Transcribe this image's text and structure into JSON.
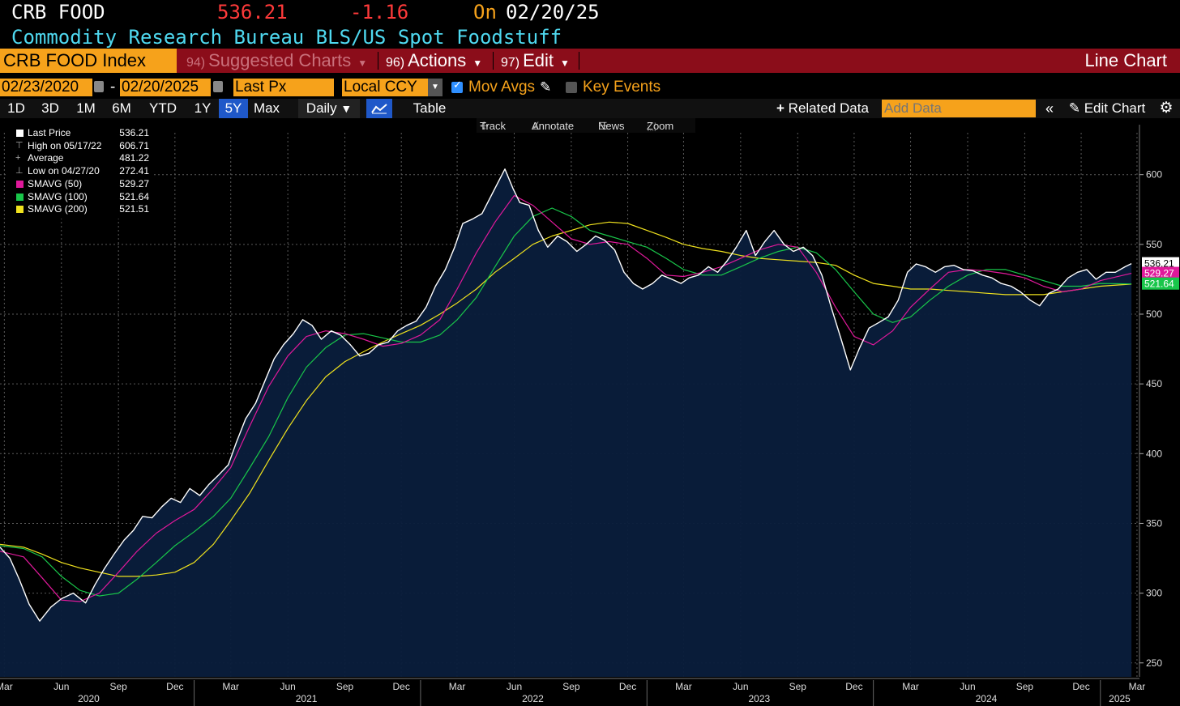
{
  "header": {
    "ticker": "CRB FOOD",
    "last": "536.21",
    "change": "-1.16",
    "on_label": "On",
    "date": "02/20/25",
    "description": "Commodity Research Bureau BLS/US Spot Foodstuff"
  },
  "menubar": {
    "title": "CRB FOOD Index",
    "suggested_num": "94)",
    "suggested": "Suggested Charts",
    "actions_num": "96)",
    "actions": "Actions",
    "edit_num": "97)",
    "edit": "Edit",
    "chart_type": "Line Chart"
  },
  "params": {
    "start_date": "02/23/2020",
    "dash": "-",
    "end_date": "02/20/2025",
    "field": "Last Px",
    "currency": "Local CCY",
    "mov_avgs": "Mov Avgs",
    "key_events": "Key Events"
  },
  "toolbar": {
    "ranges": [
      "1D",
      "3D",
      "1M",
      "6M",
      "YTD",
      "1Y",
      "5Y",
      "Max"
    ],
    "active_range": "5Y",
    "period": "Daily",
    "table": "Table",
    "related": "Related Data",
    "add_data_placeholder": "Add Data",
    "edit_chart": "Edit Chart"
  },
  "chart_tools": {
    "track": "Track",
    "annotate": "Annotate",
    "news": "News",
    "zoom": "Zoom"
  },
  "legend": [
    {
      "label": "Last Price",
      "value": "536.21",
      "color": "#ffffff",
      "marker": "square"
    },
    {
      "label": "High on 05/17/22",
      "value": "606.71",
      "color": "#aaaaaa",
      "marker": "high"
    },
    {
      "label": "Average",
      "value": "481.22",
      "color": "#aaaaaa",
      "marker": "avg"
    },
    {
      "label": "Low on 04/27/20",
      "value": "272.41",
      "color": "#aaaaaa",
      "marker": "low"
    },
    {
      "label": "SMAVG (50)",
      "value": "529.27",
      "color": "#e0199b",
      "marker": "square"
    },
    {
      "label": "SMAVG (100)",
      "value": "521.64",
      "color": "#19c64a",
      "marker": "square"
    },
    {
      "label": "SMAVG (200)",
      "value": "521.51",
      "color": "#f0e21e",
      "marker": "square"
    }
  ],
  "chart_data": {
    "type": "line",
    "title": "CRB FOOD Index",
    "ylim": [
      240,
      630
    ],
    "yticks": [
      250,
      300,
      350,
      400,
      450,
      500,
      550,
      600
    ],
    "xlim": [
      "2020-02-23",
      "2025-03-05"
    ],
    "x_month_ticks": [
      {
        "label": "Mar",
        "date": "2020-03-01"
      },
      {
        "label": "Jun",
        "date": "2020-06-01"
      },
      {
        "label": "Sep",
        "date": "2020-09-01"
      },
      {
        "label": "Dec",
        "date": "2020-12-01"
      },
      {
        "label": "Mar",
        "date": "2021-03-01"
      },
      {
        "label": "Jun",
        "date": "2021-06-01"
      },
      {
        "label": "Sep",
        "date": "2021-09-01"
      },
      {
        "label": "Dec",
        "date": "2021-12-01"
      },
      {
        "label": "Mar",
        "date": "2022-03-01"
      },
      {
        "label": "Jun",
        "date": "2022-06-01"
      },
      {
        "label": "Sep",
        "date": "2022-09-01"
      },
      {
        "label": "Dec",
        "date": "2022-12-01"
      },
      {
        "label": "Mar",
        "date": "2023-03-01"
      },
      {
        "label": "Jun",
        "date": "2023-06-01"
      },
      {
        "label": "Sep",
        "date": "2023-09-01"
      },
      {
        "label": "Dec",
        "date": "2023-12-01"
      },
      {
        "label": "Mar",
        "date": "2024-03-01"
      },
      {
        "label": "Jun",
        "date": "2024-06-01"
      },
      {
        "label": "Sep",
        "date": "2024-09-01"
      },
      {
        "label": "Dec",
        "date": "2024-12-01"
      },
      {
        "label": "Mar",
        "date": "2025-03-01"
      }
    ],
    "x_year_labels": [
      {
        "label": "2020",
        "date": "2020-07-15"
      },
      {
        "label": "2021",
        "date": "2021-07-01"
      },
      {
        "label": "2022",
        "date": "2022-07-01"
      },
      {
        "label": "2023",
        "date": "2023-07-01"
      },
      {
        "label": "2024",
        "date": "2024-07-01"
      },
      {
        "label": "2025",
        "date": "2025-02-01"
      }
    ],
    "year_dividers": [
      "2021-01-01",
      "2022-01-01",
      "2023-01-01",
      "2024-01-01",
      "2025-01-01"
    ],
    "series": [
      {
        "name": "Last Price",
        "color": "#ffffff",
        "fill": "#0a1e3c",
        "x": [
          "2020-02-23",
          "2020-03-10",
          "2020-03-25",
          "2020-04-10",
          "2020-04-27",
          "2020-05-15",
          "2020-06-01",
          "2020-06-20",
          "2020-07-10",
          "2020-07-25",
          "2020-08-10",
          "2020-08-25",
          "2020-09-10",
          "2020-09-25",
          "2020-10-10",
          "2020-10-25",
          "2020-11-10",
          "2020-11-25",
          "2020-12-10",
          "2020-12-25",
          "2021-01-10",
          "2021-01-25",
          "2021-02-10",
          "2021-02-25",
          "2021-03-10",
          "2021-03-25",
          "2021-04-10",
          "2021-04-25",
          "2021-05-10",
          "2021-05-25",
          "2021-06-10",
          "2021-06-25",
          "2021-07-10",
          "2021-07-25",
          "2021-08-10",
          "2021-08-25",
          "2021-09-10",
          "2021-09-25",
          "2021-10-10",
          "2021-10-25",
          "2021-11-10",
          "2021-11-25",
          "2021-12-10",
          "2021-12-25",
          "2022-01-10",
          "2022-01-25",
          "2022-02-10",
          "2022-02-25",
          "2022-03-10",
          "2022-03-25",
          "2022-04-10",
          "2022-04-25",
          "2022-05-17",
          "2022-05-30",
          "2022-06-10",
          "2022-06-25",
          "2022-07-10",
          "2022-07-25",
          "2022-08-10",
          "2022-08-25",
          "2022-09-10",
          "2022-09-25",
          "2022-10-10",
          "2022-10-25",
          "2022-11-10",
          "2022-11-25",
          "2022-12-10",
          "2022-12-25",
          "2023-01-10",
          "2023-01-25",
          "2023-02-10",
          "2023-02-25",
          "2023-03-10",
          "2023-03-25",
          "2023-04-10",
          "2023-04-25",
          "2023-05-10",
          "2023-05-25",
          "2023-06-10",
          "2023-06-25",
          "2023-07-10",
          "2023-07-25",
          "2023-08-10",
          "2023-08-25",
          "2023-09-10",
          "2023-09-25",
          "2023-10-10",
          "2023-10-25",
          "2023-11-10",
          "2023-11-25",
          "2023-12-10",
          "2023-12-25",
          "2024-01-10",
          "2024-01-25",
          "2024-02-10",
          "2024-02-25",
          "2024-03-10",
          "2024-03-25",
          "2024-04-10",
          "2024-04-25",
          "2024-05-10",
          "2024-05-25",
          "2024-06-10",
          "2024-06-25",
          "2024-07-10",
          "2024-07-25",
          "2024-08-10",
          "2024-08-25",
          "2024-09-10",
          "2024-09-25",
          "2024-10-10",
          "2024-10-25",
          "2024-11-10",
          "2024-11-25",
          "2024-12-10",
          "2024-12-25",
          "2025-01-10",
          "2025-01-25",
          "2025-02-10",
          "2025-02-20"
        ],
        "values": [
          333,
          325,
          310,
          292,
          280,
          290,
          296,
          300,
          293,
          306,
          318,
          328,
          338,
          345,
          355,
          354,
          362,
          368,
          365,
          375,
          370,
          378,
          385,
          392,
          408,
          425,
          436,
          452,
          468,
          478,
          486,
          496,
          492,
          482,
          488,
          485,
          478,
          470,
          472,
          478,
          480,
          488,
          492,
          495,
          505,
          520,
          532,
          548,
          565,
          568,
          572,
          585,
          604,
          590,
          580,
          578,
          560,
          548,
          556,
          552,
          545,
          550,
          556,
          553,
          546,
          530,
          522,
          518,
          522,
          528,
          525,
          522,
          526,
          528,
          534,
          530,
          538,
          548,
          560,
          542,
          552,
          560,
          550,
          545,
          548,
          542,
          528,
          505,
          482,
          460,
          476,
          490,
          494,
          498,
          510,
          530,
          536,
          534,
          530,
          534,
          535,
          532,
          531,
          528,
          526,
          522,
          520,
          516,
          510,
          506,
          515,
          518,
          526,
          530,
          532,
          525,
          530,
          530,
          534,
          536.21
        ]
      },
      {
        "name": "SMAVG (50)",
        "color": "#e0199b",
        "x": [
          "2020-02-23",
          "2020-04-01",
          "2020-05-01",
          "2020-06-01",
          "2020-07-01",
          "2020-08-01",
          "2020-09-01",
          "2020-10-01",
          "2020-11-01",
          "2020-12-01",
          "2021-01-01",
          "2021-02-01",
          "2021-03-01",
          "2021-04-01",
          "2021-05-01",
          "2021-06-01",
          "2021-07-01",
          "2021-08-01",
          "2021-09-01",
          "2021-10-01",
          "2021-11-01",
          "2021-12-01",
          "2022-01-01",
          "2022-02-01",
          "2022-03-01",
          "2022-04-01",
          "2022-05-01",
          "2022-06-01",
          "2022-07-01",
          "2022-08-01",
          "2022-09-01",
          "2022-10-01",
          "2022-11-01",
          "2022-12-01",
          "2023-01-01",
          "2023-02-01",
          "2023-03-01",
          "2023-04-01",
          "2023-05-01",
          "2023-06-01",
          "2023-07-01",
          "2023-08-01",
          "2023-09-01",
          "2023-10-01",
          "2023-11-01",
          "2023-12-01",
          "2024-01-01",
          "2024-02-01",
          "2024-03-01",
          "2024-04-01",
          "2024-05-01",
          "2024-06-01",
          "2024-07-01",
          "2024-08-01",
          "2024-09-01",
          "2024-10-01",
          "2024-11-01",
          "2024-12-01",
          "2025-01-01",
          "2025-02-20"
        ],
        "values": [
          330,
          326,
          311,
          295,
          294,
          300,
          315,
          330,
          343,
          352,
          360,
          375,
          390,
          420,
          448,
          470,
          484,
          488,
          486,
          482,
          477,
          479,
          485,
          496,
          518,
          544,
          566,
          585,
          578,
          566,
          554,
          550,
          552,
          550,
          540,
          528,
          527,
          530,
          534,
          540,
          546,
          550,
          548,
          530,
          505,
          484,
          478,
          488,
          505,
          518,
          530,
          532,
          531,
          529,
          526,
          520,
          516,
          518,
          524,
          529.27
        ]
      },
      {
        "name": "SMAVG (100)",
        "color": "#19c64a",
        "x": [
          "2020-02-23",
          "2020-04-01",
          "2020-05-01",
          "2020-06-01",
          "2020-07-01",
          "2020-08-01",
          "2020-09-01",
          "2020-10-01",
          "2020-11-01",
          "2020-12-01",
          "2021-01-01",
          "2021-02-01",
          "2021-03-01",
          "2021-04-01",
          "2021-05-01",
          "2021-06-01",
          "2021-07-01",
          "2021-08-01",
          "2021-09-01",
          "2021-10-01",
          "2021-11-01",
          "2021-12-01",
          "2022-01-01",
          "2022-02-01",
          "2022-03-01",
          "2022-04-01",
          "2022-05-01",
          "2022-06-01",
          "2022-07-01",
          "2022-08-01",
          "2022-09-01",
          "2022-10-01",
          "2022-11-01",
          "2022-12-01",
          "2023-01-01",
          "2023-02-01",
          "2023-03-01",
          "2023-04-01",
          "2023-05-01",
          "2023-06-01",
          "2023-07-01",
          "2023-08-01",
          "2023-09-01",
          "2023-10-01",
          "2023-11-01",
          "2023-12-01",
          "2024-01-01",
          "2024-02-01",
          "2024-03-01",
          "2024-04-01",
          "2024-05-01",
          "2024-06-01",
          "2024-07-01",
          "2024-08-01",
          "2024-09-01",
          "2024-10-01",
          "2024-11-01",
          "2024-12-01",
          "2025-01-01",
          "2025-02-20"
        ],
        "values": [
          334,
          332,
          326,
          312,
          302,
          298,
          300,
          310,
          322,
          334,
          344,
          355,
          368,
          390,
          412,
          440,
          462,
          476,
          485,
          486,
          483,
          480,
          480,
          485,
          496,
          512,
          534,
          556,
          570,
          576,
          570,
          560,
          556,
          552,
          548,
          540,
          532,
          528,
          528,
          534,
          540,
          545,
          548,
          544,
          532,
          516,
          500,
          494,
          498,
          510,
          520,
          528,
          532,
          532,
          528,
          524,
          520,
          520,
          522,
          521.64
        ]
      },
      {
        "name": "SMAVG (200)",
        "color": "#f0e21e",
        "x": [
          "2020-02-23",
          "2020-04-01",
          "2020-05-01",
          "2020-06-01",
          "2020-07-01",
          "2020-08-01",
          "2020-09-01",
          "2020-10-01",
          "2020-11-01",
          "2020-12-01",
          "2021-01-01",
          "2021-02-01",
          "2021-03-01",
          "2021-04-01",
          "2021-05-01",
          "2021-06-01",
          "2021-07-01",
          "2021-08-01",
          "2021-09-01",
          "2021-10-01",
          "2021-11-01",
          "2021-12-01",
          "2022-01-01",
          "2022-02-01",
          "2022-03-01",
          "2022-04-01",
          "2022-05-01",
          "2022-06-01",
          "2022-07-01",
          "2022-08-01",
          "2022-09-01",
          "2022-10-01",
          "2022-11-01",
          "2022-12-01",
          "2023-01-01",
          "2023-02-01",
          "2023-03-01",
          "2023-04-01",
          "2023-05-01",
          "2023-06-01",
          "2023-07-01",
          "2023-08-01",
          "2023-09-01",
          "2023-10-01",
          "2023-11-01",
          "2023-12-01",
          "2024-01-01",
          "2024-02-01",
          "2024-03-01",
          "2024-04-01",
          "2024-05-01",
          "2024-06-01",
          "2024-07-01",
          "2024-08-01",
          "2024-09-01",
          "2024-10-01",
          "2024-11-01",
          "2024-12-01",
          "2025-01-01",
          "2025-02-20"
        ],
        "values": [
          335,
          333,
          328,
          322,
          318,
          315,
          312,
          312,
          313,
          315,
          322,
          335,
          352,
          372,
          395,
          418,
          438,
          455,
          466,
          473,
          480,
          486,
          492,
          500,
          508,
          518,
          530,
          540,
          550,
          556,
          560,
          564,
          566,
          565,
          560,
          555,
          550,
          547,
          545,
          542,
          540,
          539,
          538,
          537,
          535,
          528,
          522,
          520,
          518,
          518,
          517,
          516,
          515,
          514,
          514,
          514,
          516,
          518,
          520,
          521.51
        ]
      }
    ],
    "y_tags": [
      {
        "value": "536.21",
        "label": "536.21",
        "bg": "#ffffff",
        "fg": "#000000"
      },
      {
        "value": "529.27",
        "label": "529.27",
        "bg": "#e0199b",
        "fg": "#ffffff"
      },
      {
        "value": "521.64",
        "label": "521.64",
        "bg": "#19c64a",
        "fg": "#ffffff"
      }
    ]
  }
}
